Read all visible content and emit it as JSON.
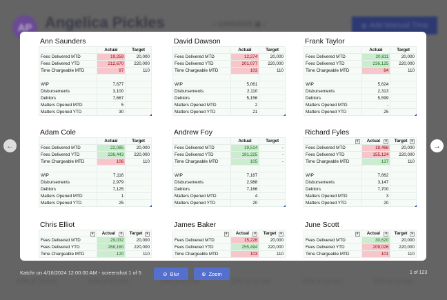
{
  "background": {
    "avatar_initials": "AP",
    "user_name": "Angelica Pickles",
    "date": "13/05/2025",
    "add_button": "Add Manual Time",
    "footer_items": [
      "10% of 10 min",
      "10% of 10 min",
      "10% of 10 min",
      "10% of 10 min",
      "10% of 10 min",
      "10% of 10 min"
    ]
  },
  "colors": {
    "red_fill": "#f6c6cb",
    "red_text": "#9c0006",
    "green_fill": "#cbeccf",
    "green_text": "#1f6b1f",
    "button": "#5570cc"
  },
  "headers": {
    "actual": "Actual",
    "target": "Target"
  },
  "row_labels": [
    "Fees Delivered MTD",
    "Fees Delivered YTD",
    "Time Chargeable MTD",
    "",
    "WIP",
    "Disbursements",
    "Debtors",
    "Matters Opened MTD",
    "Matters Opened YTD"
  ],
  "cards": [
    {
      "name": "Ann Saunders",
      "filters": false,
      "rows": [
        [
          "19,259",
          "20,000",
          "red"
        ],
        [
          "212,670",
          "220,000",
          "red"
        ],
        [
          "97",
          "110",
          "red"
        ],
        [
          "",
          ""
        ],
        [
          "7,677",
          ""
        ],
        [
          "3,100",
          ""
        ],
        [
          "7,667",
          ""
        ],
        [
          "5",
          ""
        ],
        [
          "30",
          ""
        ]
      ]
    },
    {
      "name": "David Dawson",
      "filters": false,
      "rows": [
        [
          "12,274",
          "20,000",
          "red"
        ],
        [
          "201,077",
          "220,000",
          "red"
        ],
        [
          "103",
          "110",
          "red"
        ],
        [
          "",
          ""
        ],
        [
          "5,061",
          ""
        ],
        [
          "2,110",
          ""
        ],
        [
          "5,156",
          ""
        ],
        [
          "2",
          ""
        ],
        [
          "21",
          ""
        ]
      ]
    },
    {
      "name": "Frank Taylor",
      "filters": false,
      "rows": [
        [
          "20,811",
          "20,000",
          "green"
        ],
        [
          "236,125",
          "220,000",
          "green"
        ],
        [
          "84",
          "110",
          "red"
        ],
        [
          "",
          ""
        ],
        [
          "5,624",
          ""
        ],
        [
          "2,313",
          ""
        ],
        [
          "5,599",
          ""
        ],
        [
          "-",
          ""
        ],
        [
          "25",
          ""
        ]
      ]
    },
    {
      "name": "Adam Cole",
      "filters": false,
      "rows": [
        [
          "22,085",
          "20,000",
          "green"
        ],
        [
          "236,443",
          "220,000",
          "green"
        ],
        [
          "106",
          "110",
          "red"
        ],
        [
          "",
          ""
        ],
        [
          "7,116",
          ""
        ],
        [
          "2,979",
          ""
        ],
        [
          "7,125",
          ""
        ],
        [
          "1",
          ""
        ],
        [
          "25",
          ""
        ]
      ]
    },
    {
      "name": "Andrew Foy",
      "filters": false,
      "rows": [
        [
          "19,514",
          "-",
          "green"
        ],
        [
          "191,225",
          "-",
          "green"
        ],
        [
          "105",
          "-",
          "green"
        ],
        [
          "",
          ""
        ],
        [
          "7,187",
          ""
        ],
        [
          "2,988",
          ""
        ],
        [
          "7,166",
          ""
        ],
        [
          "4",
          ""
        ],
        [
          "20",
          ""
        ]
      ]
    },
    {
      "name": "Richard Fyles",
      "filters": true,
      "rows": [
        [
          "18,466",
          "20,000",
          "red"
        ],
        [
          "155,124",
          "220,000",
          "red"
        ],
        [
          "137",
          "110",
          "green"
        ],
        [
          "",
          ""
        ],
        [
          "7,662",
          ""
        ],
        [
          "3,147",
          ""
        ],
        [
          "7,700",
          ""
        ],
        [
          "3",
          ""
        ],
        [
          "20",
          ""
        ]
      ]
    },
    {
      "name": "Chris Elliot",
      "filters": true,
      "rows": [
        [
          "29,032",
          "20,000",
          "green"
        ],
        [
          "268,160",
          "220,000",
          "green"
        ],
        [
          "120",
          "110",
          "green"
        ]
      ]
    },
    {
      "name": "James Baker",
      "filters": true,
      "rows": [
        [
          "15,226",
          "20,000",
          "red"
        ],
        [
          "255,494",
          "220,000",
          "green"
        ],
        [
          "103",
          "110",
          "red"
        ]
      ]
    },
    {
      "name": "June Scott",
      "filters": true,
      "rows": [
        [
          "30,620",
          "20,000",
          "green"
        ],
        [
          "209,026",
          "220,000",
          "red"
        ],
        [
          "101",
          "110",
          "red"
        ]
      ]
    }
  ],
  "footer": {
    "caption": "Katchr on 4/16/2024 12:00:00 AM - screenshot 1 of 5",
    "blur_label": "Blur",
    "zoom_label": "Zoom",
    "count": "1 of 123"
  }
}
